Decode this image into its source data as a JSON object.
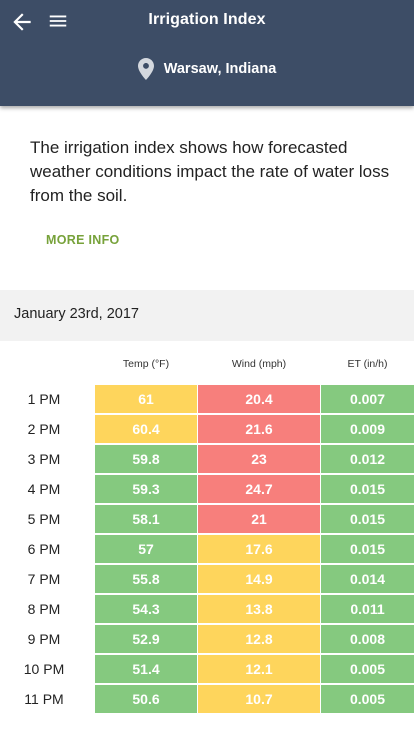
{
  "header": {
    "title": "Irrigation Index",
    "location": "Warsaw, Indiana"
  },
  "intro": {
    "text": "The irrigation index shows how forecasted weather conditions impact the rate of water loss from the soil.",
    "more_info": "MORE INFO"
  },
  "date": "January 23rd, 2017",
  "colors": {
    "header_bg": "#3d4d66",
    "accent": "#77a23a",
    "green": "#85c97f",
    "yellow": "#fed55c",
    "red": "#f77f7c"
  },
  "table": {
    "columns": [
      "Temp (°F)",
      "Wind (mph)",
      "ET (in/h)"
    ],
    "rows": [
      {
        "time": "1 PM",
        "temp": "61",
        "temp_level": "yellow",
        "wind": "20.4",
        "wind_level": "red",
        "et": "0.007",
        "et_level": "green"
      },
      {
        "time": "2 PM",
        "temp": "60.4",
        "temp_level": "yellow",
        "wind": "21.6",
        "wind_level": "red",
        "et": "0.009",
        "et_level": "green"
      },
      {
        "time": "3 PM",
        "temp": "59.8",
        "temp_level": "green",
        "wind": "23",
        "wind_level": "red",
        "et": "0.012",
        "et_level": "green"
      },
      {
        "time": "4 PM",
        "temp": "59.3",
        "temp_level": "green",
        "wind": "24.7",
        "wind_level": "red",
        "et": "0.015",
        "et_level": "green"
      },
      {
        "time": "5 PM",
        "temp": "58.1",
        "temp_level": "green",
        "wind": "21",
        "wind_level": "red",
        "et": "0.015",
        "et_level": "green"
      },
      {
        "time": "6 PM",
        "temp": "57",
        "temp_level": "green",
        "wind": "17.6",
        "wind_level": "yellow",
        "et": "0.015",
        "et_level": "green"
      },
      {
        "time": "7 PM",
        "temp": "55.8",
        "temp_level": "green",
        "wind": "14.9",
        "wind_level": "yellow",
        "et": "0.014",
        "et_level": "green"
      },
      {
        "time": "8 PM",
        "temp": "54.3",
        "temp_level": "green",
        "wind": "13.8",
        "wind_level": "yellow",
        "et": "0.011",
        "et_level": "green"
      },
      {
        "time": "9 PM",
        "temp": "52.9",
        "temp_level": "green",
        "wind": "12.8",
        "wind_level": "yellow",
        "et": "0.008",
        "et_level": "green"
      },
      {
        "time": "10 PM",
        "temp": "51.4",
        "temp_level": "green",
        "wind": "12.1",
        "wind_level": "yellow",
        "et": "0.005",
        "et_level": "green"
      },
      {
        "time": "11 PM",
        "temp": "50.6",
        "temp_level": "green",
        "wind": "10.7",
        "wind_level": "yellow",
        "et": "0.005",
        "et_level": "green"
      }
    ]
  }
}
